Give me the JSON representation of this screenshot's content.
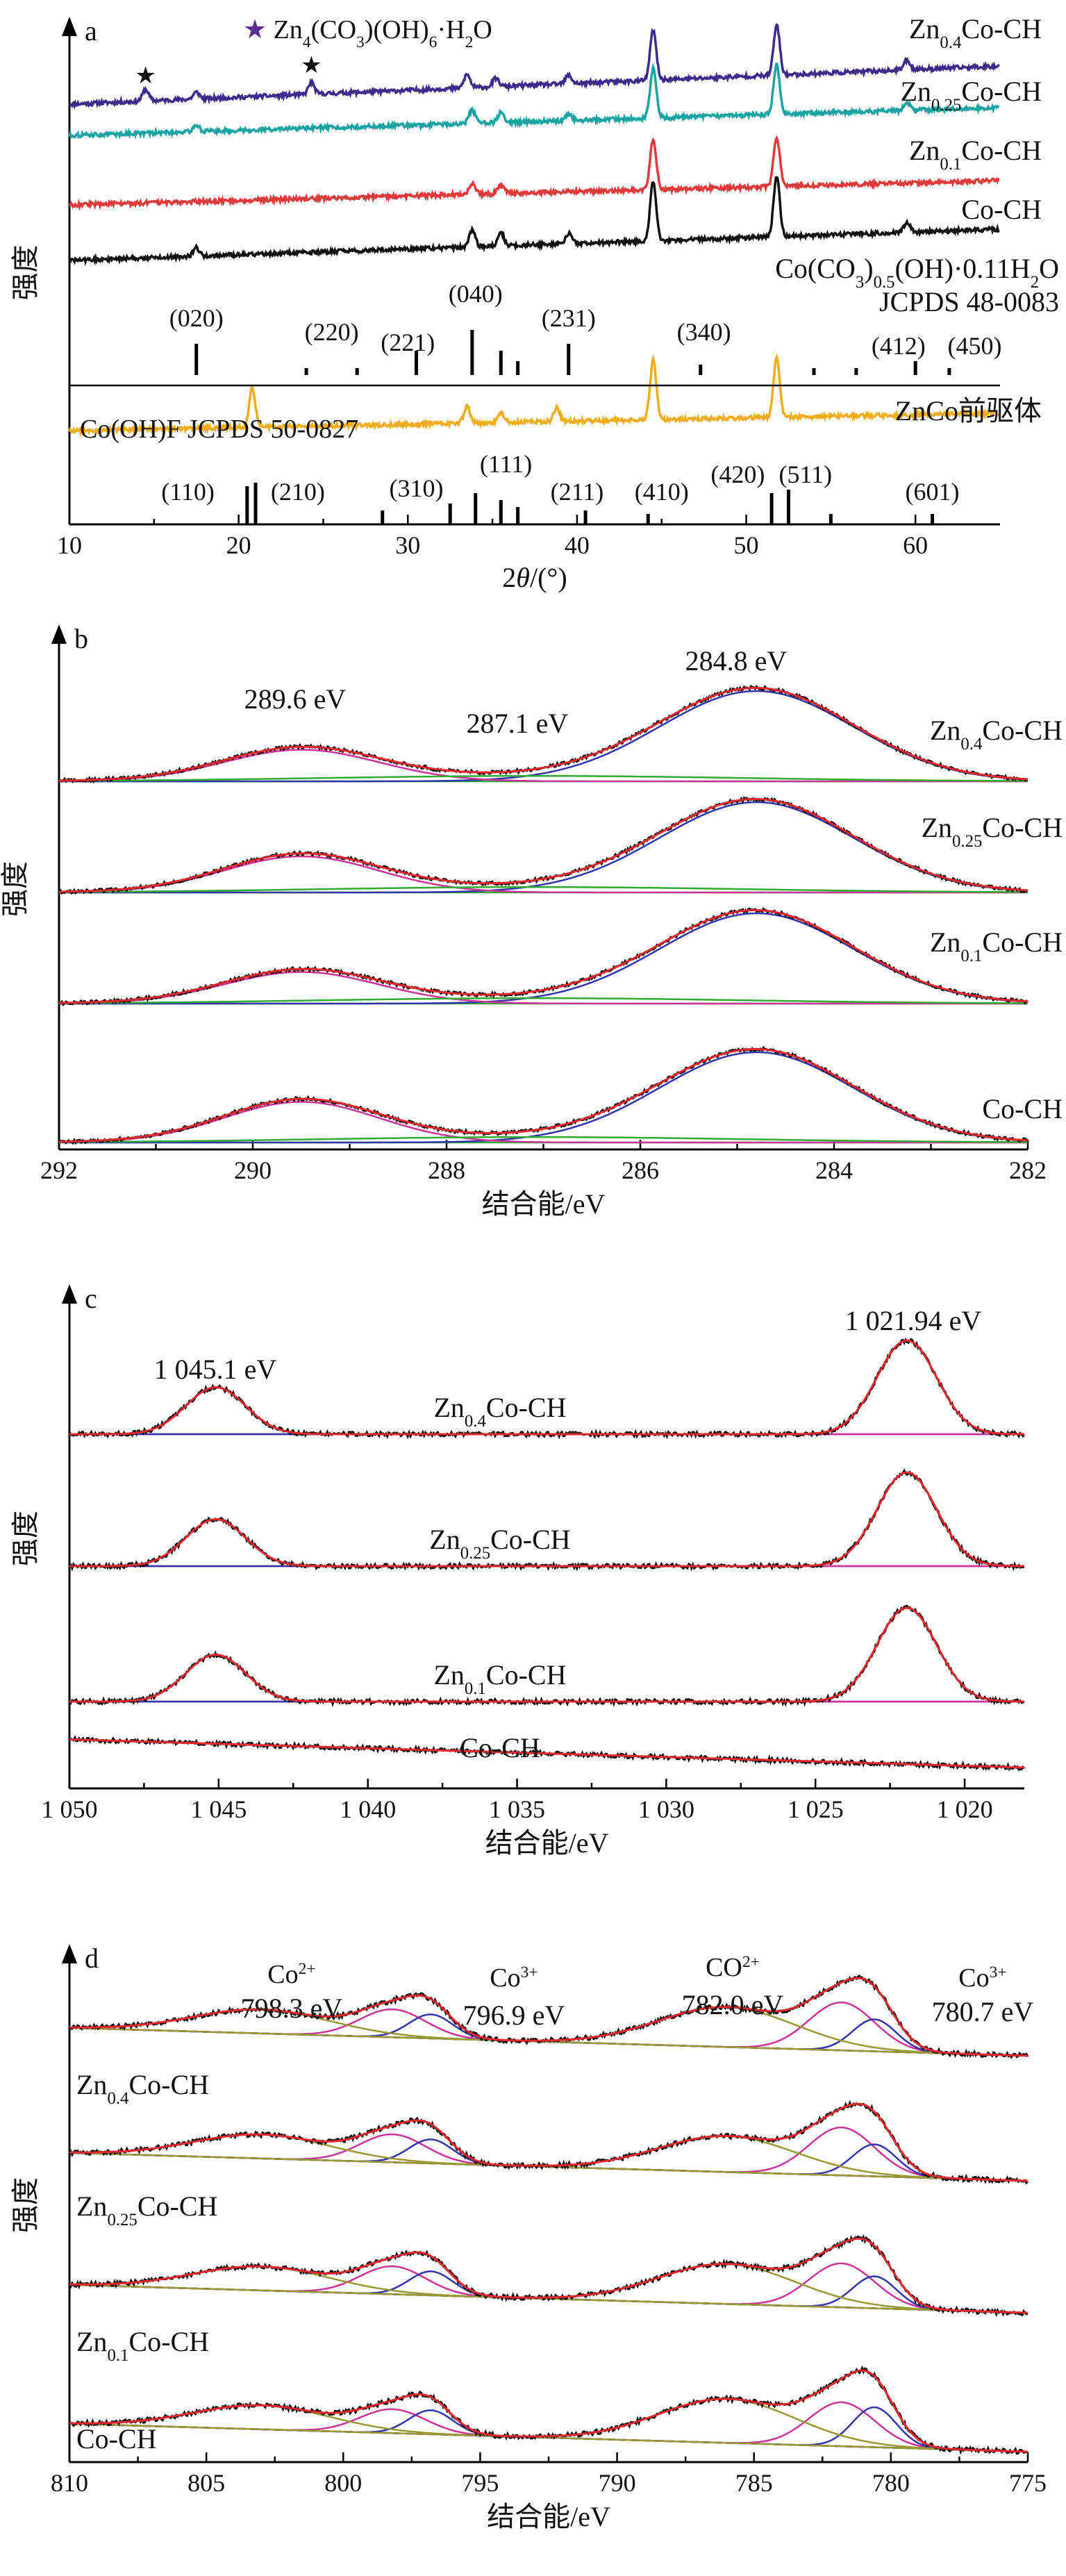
{
  "chart_data": [
    {
      "panel": "a",
      "type": "line",
      "xlabel_parts": [
        "2",
        "θ",
        "/(°)"
      ],
      "ylabel": "强度",
      "xlim": [
        10,
        65
      ],
      "xticks": [
        10,
        20,
        30,
        40,
        50,
        60
      ],
      "legend": "★ Zn4(CO3)(OH)6·H2O",
      "legend_rich": [
        [
          "★",
          ""
        ],
        [
          " Zn",
          ""
        ],
        [
          "4",
          "sub"
        ],
        [
          "(CO",
          ""
        ],
        [
          "3",
          "sub"
        ],
        [
          ")(OH)",
          ""
        ],
        [
          "6",
          "sub"
        ],
        [
          "·H",
          ""
        ],
        [
          "2",
          "sub"
        ],
        [
          "O",
          ""
        ]
      ],
      "series": [
        {
          "name": "Zn0.4Co-CH",
          "name_rich": [
            [
              "Zn",
              ""
            ],
            [
              "0.4",
              "sub"
            ],
            [
              "Co-CH",
              ""
            ]
          ],
          "color": "#3d2a8a",
          "peaks": [
            [
              14.5,
              0.35
            ],
            [
              17.5,
              0.2
            ],
            [
              24.3,
              0.35
            ],
            [
              33.5,
              0.4
            ],
            [
              35.2,
              0.25
            ],
            [
              39.5,
              0.25
            ],
            [
              44.5,
              1.5
            ],
            [
              51.8,
              1.5
            ],
            [
              59.5,
              0.3
            ]
          ]
        },
        {
          "name": "Zn0.25Co-CH",
          "name_rich": [
            [
              "Zn",
              ""
            ],
            [
              "0.25",
              "sub"
            ],
            [
              "Co-CH",
              ""
            ]
          ],
          "color": "#1aa3a3",
          "peaks": [
            [
              17.5,
              0.2
            ],
            [
              33.8,
              0.4
            ],
            [
              35.5,
              0.3
            ],
            [
              39.5,
              0.2
            ],
            [
              44.5,
              1.5
            ],
            [
              51.8,
              1.5
            ],
            [
              59.5,
              0.25
            ]
          ]
        },
        {
          "name": "Zn0.1Co-CH",
          "name_rich": [
            [
              "Zn",
              ""
            ],
            [
              "0.1",
              "sub"
            ],
            [
              "Co-CH",
              ""
            ]
          ],
          "color": "#e03a3a",
          "peaks": [
            [
              33.8,
              0.3
            ],
            [
              35.5,
              0.25
            ],
            [
              44.5,
              1.5
            ],
            [
              51.8,
              1.5
            ]
          ]
        },
        {
          "name": "Co-CH",
          "name_rich": [
            [
              "Co-CH",
              ""
            ]
          ],
          "color": "#111111",
          "peaks": [
            [
              17.5,
              0.25
            ],
            [
              33.8,
              0.5
            ],
            [
              35.5,
              0.4
            ],
            [
              39.5,
              0.3
            ],
            [
              44.5,
              1.8
            ],
            [
              51.8,
              1.8
            ],
            [
              59.5,
              0.3
            ]
          ]
        },
        {
          "name": "ZnCo前驱体",
          "name_rich": [
            [
              "ZnCo前驱体",
              ""
            ]
          ],
          "color": "#f0ad1a",
          "peaks": [
            [
              20.8,
              1.2
            ],
            [
              33.5,
              0.5
            ],
            [
              35.5,
              0.3
            ],
            [
              38.8,
              0.4
            ],
            [
              44.5,
              1.8
            ],
            [
              51.8,
              1.8
            ]
          ]
        }
      ],
      "references": [
        {
          "label_rich": [
            [
              "Co(CO",
              ""
            ],
            [
              "3",
              "sub"
            ],
            [
              ")",
              ""
            ],
            [
              "0.5",
              "sub"
            ],
            [
              "(OH)·0.11H",
              ""
            ],
            [
              "2",
              "sub"
            ],
            [
              "O",
              ""
            ]
          ],
          "label2": "JCPDS 48-0083",
          "lines": [
            17.5,
            24.0,
            27.0,
            30.5,
            33.8,
            35.5,
            36.5,
            39.5,
            47.3,
            54.0,
            56.5,
            60.0,
            62.0
          ],
          "miller": [
            [
              "(020)",
              17.5
            ],
            [
              "(220)",
              25.5
            ],
            [
              "(221)",
              30.0
            ],
            [
              "(040)",
              34.0
            ],
            [
              "(231)",
              39.5
            ],
            [
              "(340)",
              47.5
            ],
            [
              "(412)",
              59.0
            ],
            [
              "(450)",
              63.5
            ]
          ]
        },
        {
          "label": "Co(OH)F JCPDS 50-0827",
          "lines": [
            20.5,
            21.0,
            28.5,
            32.5,
            34.0,
            35.5,
            36.5,
            40.5,
            44.2,
            51.5,
            52.5,
            55.0,
            61.0
          ],
          "miller": [
            [
              "(110)",
              17.0
            ],
            [
              "(210)",
              23.5
            ],
            [
              "(310)",
              30.5
            ],
            [
              "(111)",
              35.8
            ],
            [
              "(211)",
              40.0
            ],
            [
              "(410)",
              45.0
            ],
            [
              "(420)",
              49.5
            ],
            [
              "(511)",
              53.5
            ],
            [
              "(601)",
              61.0
            ]
          ]
        }
      ]
    },
    {
      "panel": "b",
      "type": "line",
      "xlabel": "结合能/eV",
      "ylabel": "强度",
      "xlim": [
        292,
        282
      ],
      "xticks": [
        292,
        290,
        288,
        286,
        284,
        282
      ],
      "annotations": [
        "289.6 eV",
        "287.1 eV",
        "284.8 eV"
      ],
      "components": [
        {
          "center": 284.8,
          "width": 1.0,
          "color": "#3333aa"
        },
        {
          "center": 289.5,
          "width": 0.8,
          "color": "#cc3399"
        },
        {
          "center": 287.1,
          "width": 2.2,
          "color": "#33aa33"
        }
      ],
      "series": [
        {
          "name": "Zn0.4Co-CH",
          "name_rich": [
            [
              "Zn",
              ""
            ],
            [
              "0.4",
              "sub"
            ],
            [
              "Co-CH",
              ""
            ]
          ],
          "amps": [
            1.0,
            0.35,
            0.06
          ]
        },
        {
          "name": "Zn0.25Co-CH",
          "name_rich": [
            [
              "Zn",
              ""
            ],
            [
              "0.25",
              "sub"
            ],
            [
              "Co-CH",
              ""
            ]
          ],
          "amps": [
            1.0,
            0.4,
            0.06
          ]
        },
        {
          "name": "Zn0.1Co-CH",
          "name_rich": [
            [
              "Zn",
              ""
            ],
            [
              "0.1",
              "sub"
            ],
            [
              "Co-CH",
              ""
            ]
          ],
          "amps": [
            1.0,
            0.35,
            0.06
          ]
        },
        {
          "name": "Co-CH",
          "name_rich": [
            [
              "Co-CH",
              ""
            ]
          ],
          "amps": [
            1.0,
            0.45,
            0.06
          ]
        }
      ]
    },
    {
      "panel": "c",
      "type": "line",
      "xlabel": "结合能/eV",
      "ylabel": "强度",
      "xlim": [
        1050,
        1018
      ],
      "xticks": [
        1050,
        1045,
        1040,
        1035,
        1030,
        1025,
        1020
      ],
      "xtick_labels": [
        "1 050",
        "1 045",
        "1 040",
        "1 035",
        "1 030",
        "1 025",
        "1 020"
      ],
      "annotations": [
        "1 045.1 eV",
        "1 021.94 eV"
      ],
      "components": [
        {
          "center": 1021.94,
          "width": 1.0,
          "color": "#3333aa"
        },
        {
          "center": 1045.1,
          "width": 1.0,
          "color": "#cc3399"
        }
      ],
      "series": [
        {
          "name": "Zn0.4Co-CH",
          "name_rich": [
            [
              "Zn",
              ""
            ],
            [
              "0.4",
              "sub"
            ],
            [
              "Co-CH",
              ""
            ]
          ],
          "amps": [
            1.0,
            0.5
          ]
        },
        {
          "name": "Zn0.25Co-CH",
          "name_rich": [
            [
              "Zn",
              ""
            ],
            [
              "0.25",
              "sub"
            ],
            [
              "Co-CH",
              ""
            ]
          ],
          "amps": [
            1.0,
            0.5
          ]
        },
        {
          "name": "Zn0.1Co-CH",
          "name_rich": [
            [
              "Zn",
              ""
            ],
            [
              "0.1",
              "sub"
            ],
            [
              "Co-CH",
              ""
            ]
          ],
          "amps": [
            1.0,
            0.5
          ]
        },
        {
          "name": "Co-CH",
          "name_rich": [
            [
              "Co-CH",
              ""
            ]
          ],
          "amps": [
            0.0,
            0.0
          ]
        }
      ]
    },
    {
      "panel": "d",
      "type": "line",
      "xlabel": "结合能/eV",
      "ylabel": "强度",
      "xlim": [
        810,
        775
      ],
      "xticks": [
        810,
        805,
        800,
        795,
        790,
        785,
        780,
        775
      ],
      "annotations": [
        {
          "top_rich": [
            [
              "Co",
              ""
            ],
            [
              "2+",
              "sup"
            ]
          ],
          "value": "798.3 eV"
        },
        {
          "top_rich": [
            [
              "Co",
              ""
            ],
            [
              "3+",
              "sup"
            ]
          ],
          "value": "796.9 eV"
        },
        {
          "top_rich": [
            [
              "CO",
              ""
            ],
            [
              "2+",
              "sup"
            ]
          ],
          "value": "782.0 eV"
        },
        {
          "top_rich": [
            [
              "Co",
              ""
            ],
            [
              "3+",
              "sup"
            ]
          ],
          "value": "780.7 eV"
        }
      ],
      "components": [
        {
          "center": 781.8,
          "width": 1.2,
          "color": "#cc3399"
        },
        {
          "center": 780.6,
          "width": 0.8,
          "color": "#3333aa"
        },
        {
          "center": 798.2,
          "width": 1.2,
          "color": "#cc3399"
        },
        {
          "center": 796.8,
          "width": 0.8,
          "color": "#3333aa"
        },
        {
          "center": 786.0,
          "width": 2.5,
          "color": "#999933"
        },
        {
          "center": 803.0,
          "width": 2.5,
          "color": "#999933"
        }
      ],
      "series": [
        {
          "name": "Zn0.4Co-CH",
          "name_rich": [
            [
              "Zn",
              ""
            ],
            [
              "0.4",
              "sub"
            ],
            [
              "Co-CH",
              ""
            ]
          ],
          "amps": [
            0.6,
            0.4,
            0.35,
            0.3,
            0.5,
            0.3
          ]
        },
        {
          "name": "Zn0.25Co-CH",
          "name_rich": [
            [
              "Zn",
              ""
            ],
            [
              "0.25",
              "sub"
            ],
            [
              "Co-CH",
              ""
            ]
          ],
          "amps": [
            0.6,
            0.4,
            0.35,
            0.3,
            0.45,
            0.3
          ]
        },
        {
          "name": "Zn0.1Co-CH",
          "name_rich": [
            [
              "Zn",
              ""
            ],
            [
              "0.1",
              "sub"
            ],
            [
              "Co-CH",
              ""
            ]
          ],
          "amps": [
            0.55,
            0.4,
            0.35,
            0.3,
            0.5,
            0.3
          ]
        },
        {
          "name": "Co-CH",
          "name_rich": [
            [
              "Co-CH",
              ""
            ]
          ],
          "amps": [
            0.55,
            0.5,
            0.3,
            0.3,
            0.55,
            0.3
          ]
        }
      ]
    }
  ]
}
